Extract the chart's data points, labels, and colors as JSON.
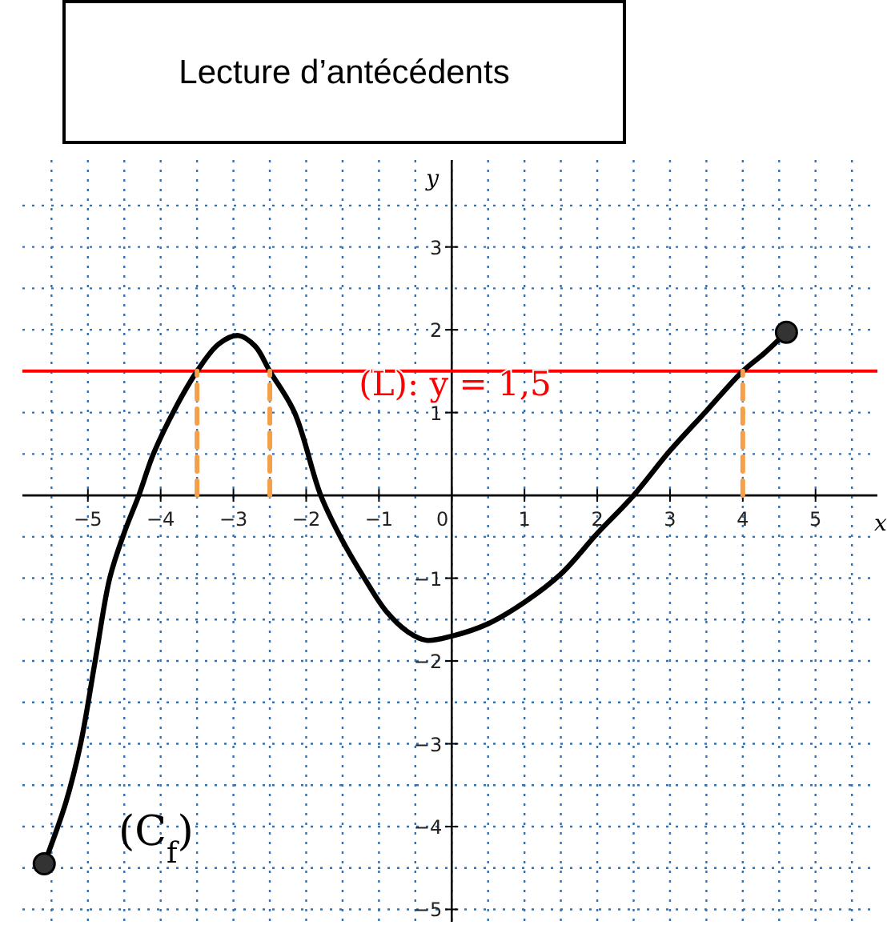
{
  "chart_data": {
    "type": "line",
    "title": "Lecture d’antécédents",
    "xlabel": "x",
    "ylabel": "y",
    "xlim": [
      -5.9,
      5.85
    ],
    "ylim": [
      -5.15,
      4.05
    ],
    "xticks": [
      {
        "value": -5.5,
        "label": null
      },
      -5,
      {
        "value": -4.5,
        "label": null
      },
      -4,
      {
        "value": -3.5,
        "label": null
      },
      -3,
      {
        "value": -2.5,
        "label": null
      },
      -2,
      {
        "value": -1.5,
        "label": null
      },
      -1,
      {
        "value": -0.5,
        "label": null
      },
      0,
      {
        "value": 0.5,
        "label": null
      },
      1,
      {
        "value": 1.5,
        "label": null
      },
      2,
      {
        "value": 2.5,
        "label": null
      },
      3,
      {
        "value": 3.5,
        "label": null
      },
      4,
      {
        "value": 4.5,
        "label": null
      },
      5,
      {
        "value": 5.5,
        "label": null
      }
    ],
    "yticks": [
      -5,
      {
        "value": -4.5,
        "label": null
      },
      -4,
      {
        "value": -3.5,
        "label": null
      },
      -3,
      {
        "value": -2.5,
        "label": null
      },
      -2,
      {
        "value": -1.5,
        "label": null
      },
      -1,
      {
        "value": -0.5,
        "label": null
      },
      {
        "value": 0.5,
        "label": null
      },
      1,
      {
        "value": 1.5,
        "label": null
      },
      2,
      {
        "value": 2.5,
        "label": null
      },
      3,
      {
        "value": 3.5,
        "label": null
      }
    ],
    "grid": true,
    "marker": "none",
    "line_style": "solid",
    "series": [
      {
        "color": "#000000",
        "x": [
          -5.6,
          -5.3,
          -5.1,
          -4.9,
          -4.7,
          -4.5,
          -4.3,
          -4.1,
          -3.8,
          -3.5,
          -3.2,
          -2.93,
          -2.7,
          -2.5,
          -2.16,
          -1.8,
          -1.5,
          -1.2,
          -0.9,
          -0.6,
          -0.35,
          0,
          0.5,
          1,
          1.5,
          2,
          2.5,
          3,
          3.5,
          4,
          4.3,
          4.6
        ],
        "values": [
          -4.45,
          -3.7,
          -3,
          -2,
          -1,
          -0.45,
          0,
          0.5,
          1.05,
          1.5,
          1.83,
          1.93,
          1.8,
          1.5,
          1,
          0,
          -0.55,
          -1,
          -1.4,
          -1.65,
          -1.75,
          -1.7,
          -1.55,
          -1.29,
          -0.95,
          -0.46,
          0,
          0.54,
          1.02,
          1.5,
          1.72,
          1.97
        ]
      },
      {
        "type": "scatter",
        "marker": "circle",
        "color": "#333333",
        "x": [
          -5.6,
          4.6
        ],
        "values": [
          -4.45,
          1.97
        ]
      },
      {
        "color": "#f4a04a",
        "line_style": "dashed",
        "x": [
          -3.5,
          -3.5
        ],
        "values": [
          0,
          1.5
        ]
      },
      {
        "color": "#f4a04a",
        "line_style": "dashed",
        "x": [
          -2.5,
          -2.5
        ],
        "values": [
          0,
          1.5
        ]
      },
      {
        "color": "#f4a04a",
        "line_style": "dashed",
        "x": [
          4,
          4
        ],
        "values": [
          0,
          1.5
        ]
      }
    ],
    "ref_lines": [
      {
        "axis": "y",
        "value": 1.5,
        "label": "(L): y = 1,5",
        "color": "#ff0000"
      }
    ],
    "annotations": [
      "(C$_{f}$)"
    ]
  }
}
